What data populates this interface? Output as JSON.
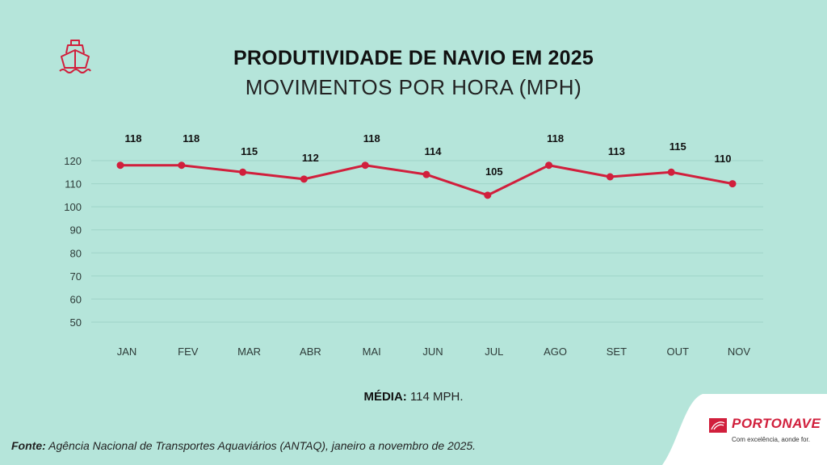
{
  "header": {
    "title": "PRODUTIVIDADE DE NAVIO EM 2025",
    "subtitle": "MOVIMENTOS POR HORA (MPH)",
    "icon": "ship-icon"
  },
  "chart_data": {
    "type": "line",
    "title": "PRODUTIVIDADE DE NAVIO EM 2025",
    "subtitle": "MOVIMENTOS POR HORA (MPH)",
    "xlabel": "",
    "ylabel": "",
    "categories": [
      "JAN",
      "FEV",
      "MAR",
      "ABR",
      "MAI",
      "JUN",
      "JUL",
      "AGO",
      "SET",
      "OUT",
      "NOV"
    ],
    "series": [
      {
        "name": "MPH",
        "values": [
          118,
          118,
          115,
          112,
          118,
          114,
          105,
          118,
          113,
          115,
          110
        ],
        "color": "#d11f3c"
      }
    ],
    "yticks": [
      50,
      60,
      70,
      80,
      90,
      100,
      110,
      120
    ],
    "ylim": [
      50,
      120
    ],
    "grid": true,
    "data_labels": true,
    "legend": "none"
  },
  "footer": {
    "media_label": "MÉDIA:",
    "media_value": "114 MPH.",
    "fonte_label": "Fonte:",
    "fonte_text": "Agência Nacional de Transportes Aquaviários (ANTAQ), janeiro a novembro de 2025."
  },
  "brand": {
    "name": "PORTONAVE",
    "tagline": "Com excelência, aonde for.",
    "color": "#d11f3c"
  },
  "colors": {
    "background": "#b5e5da",
    "line": "#d11f3c",
    "grid": "#9fd4c8"
  }
}
